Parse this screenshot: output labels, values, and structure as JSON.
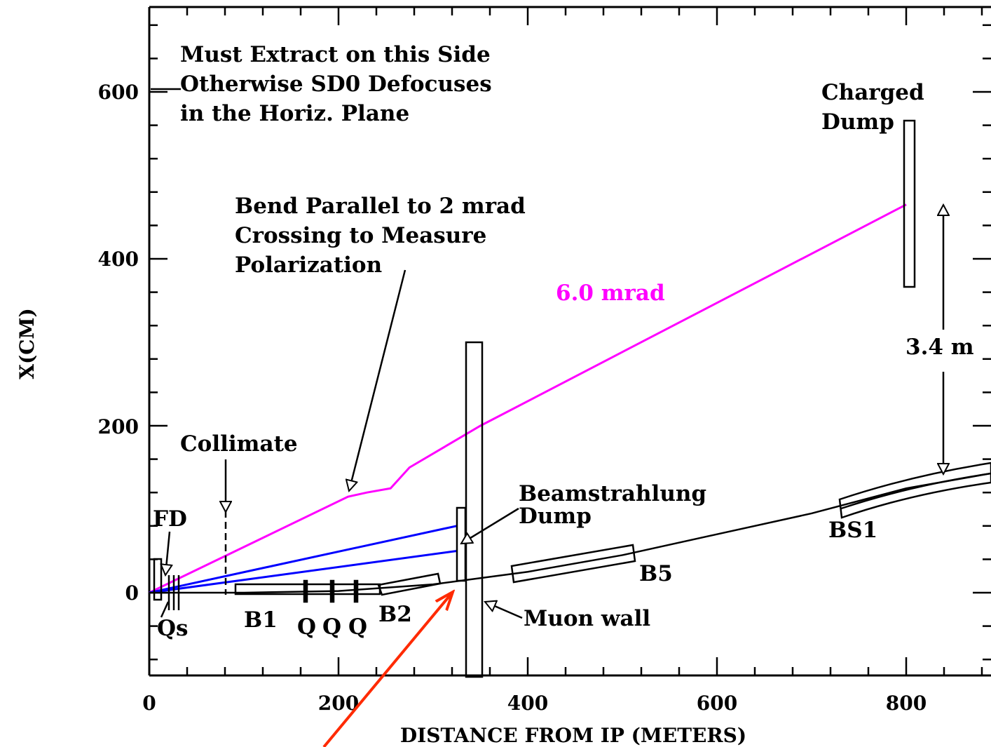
{
  "chart_data": {
    "type": "line",
    "xlabel": "DISTANCE FROM IP (METERS)",
    "ylabel": "X(CM)",
    "xlim": [
      0,
      1000
    ],
    "ylim": [
      -100,
      700
    ],
    "x_ticks": [
      "0",
      "200",
      "400",
      "600",
      "800"
    ],
    "y_ticks": [
      "0",
      "200",
      "400",
      "600"
    ],
    "series": [
      {
        "name": "6.0 mrad",
        "color": "#ff00ff",
        "points": [
          [
            0,
            0
          ],
          [
            210,
            115
          ],
          [
            230,
            120
          ],
          [
            255,
            125
          ],
          [
            275,
            150
          ],
          [
            350,
            200
          ],
          [
            800,
            465
          ]
        ]
      },
      {
        "name": "",
        "color": "#0000ff",
        "points": [
          [
            0,
            0
          ],
          [
            325,
            80
          ]
        ]
      },
      {
        "name": "",
        "color": "#0000ff",
        "points": [
          [
            0,
            0
          ],
          [
            325,
            50
          ]
        ]
      },
      {
        "name": "",
        "color": "#000000",
        "points": [
          [
            0,
            0
          ],
          [
            100,
            0
          ],
          [
            200,
            2
          ],
          [
            300,
            10
          ],
          [
            400,
            25
          ],
          [
            500,
            45
          ],
          [
            600,
            70
          ],
          [
            700,
            95
          ],
          [
            800,
            125
          ],
          [
            900,
            145
          ],
          [
            1000,
            155
          ]
        ]
      }
    ],
    "annotations": {
      "note": [
        "Must Extract on this Side",
        "Otherwise SD0 Defocuses",
        "in the Horiz. Plane"
      ],
      "bend": [
        "Bend Parallel to 2 mrad",
        "Crossing to Measure",
        "Polarization"
      ],
      "charged": [
        "Charged",
        "Dump"
      ],
      "beamstrahlung": [
        "Beamstrahlung",
        "Dump"
      ],
      "mrad": "6.0 mrad",
      "span": "3.4 m",
      "collimate": "Collimate",
      "fd": "FD",
      "qs": "Qs",
      "b1": "B1",
      "q1": "Q",
      "q2": "Q",
      "q3": "Q",
      "b2": "B2",
      "b5": "B5",
      "bs1": "BS1",
      "muon": "Muon wall"
    },
    "colors": {
      "axis": "#000000",
      "pink": "#ff00ff",
      "blue": "#0000ff",
      "red_arrow": "#ff2a00"
    }
  }
}
